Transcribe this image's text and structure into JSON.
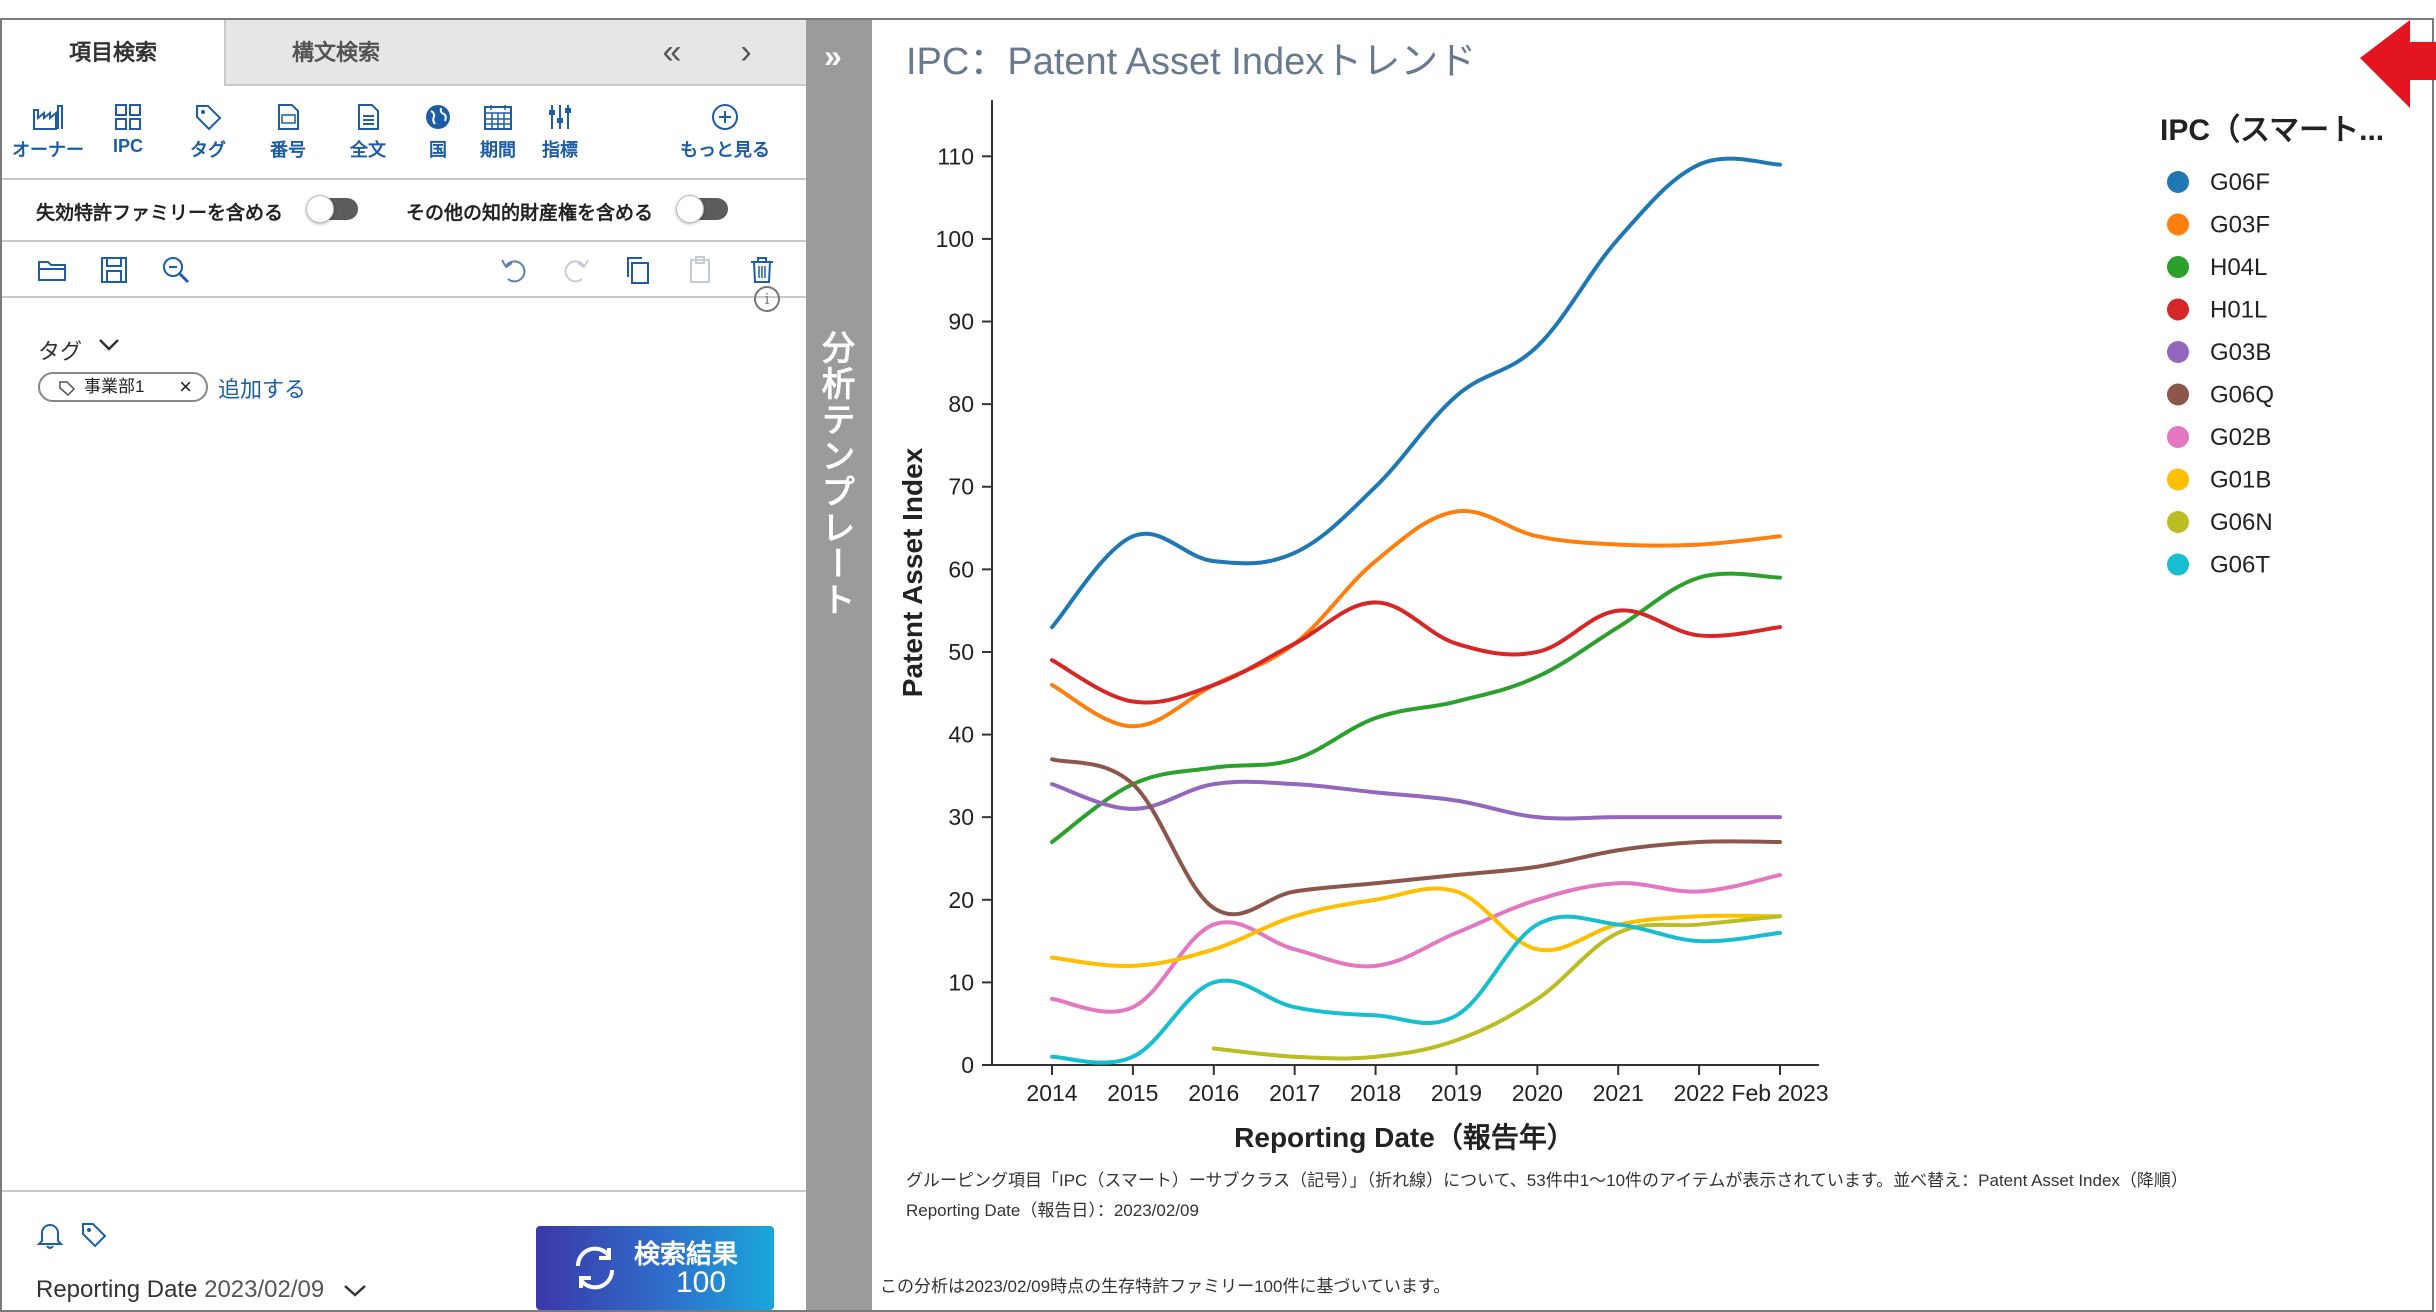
{
  "left": {
    "tabs": [
      "項目検索",
      "構文検索"
    ],
    "tools": [
      "オーナー",
      "IPC",
      "タグ",
      "番号",
      "全文",
      "国",
      "期間",
      "指標",
      "もっと見る"
    ],
    "toggles": {
      "lapsed": "失効特許ファミリーを含める",
      "other_ip": "その他の知的財産権を含める"
    },
    "tag_section": {
      "label": "タグ",
      "chip": "事業部1",
      "add": "追加する"
    },
    "reporting_date": {
      "label": "Reporting Date",
      "value": "2023/02/09"
    },
    "search": {
      "label": "検索結果",
      "count": "100"
    }
  },
  "strip": {
    "label": "分析テンプレート"
  },
  "right": {
    "title": "IPC：Patent Asset Indexトレンド",
    "caption1": "グルーピング項目「IPC（スマート）ーサブクラス（記号）」（折れ線）について、53件中1〜10件のアイテムが表示されています。並べ替え：Patent Asset Index（降順）",
    "caption2": "Reporting Date（報告日）：2023/02/09",
    "footer": "この分析は2023/02/09時点の生存特許ファミリー100件に基づいています。"
  },
  "chart_data": {
    "type": "line",
    "title": "IPC：Patent Asset Indexトレンド",
    "xlabel": "Reporting Date（報告年）",
    "ylabel": "Patent Asset Index",
    "categories": [
      "2014",
      "2015",
      "2016",
      "2017",
      "2018",
      "2019",
      "2020",
      "2021",
      "2022",
      "Feb 2023"
    ],
    "ylim": [
      0,
      115
    ],
    "yticks": [
      0,
      10,
      20,
      30,
      40,
      50,
      60,
      70,
      80,
      90,
      100,
      110
    ],
    "legend_title": "IPC（スマート...",
    "legend_position": "right",
    "series": [
      {
        "name": "G06F",
        "color": "#1f77b4",
        "values": [
          53,
          64,
          61,
          62,
          70,
          81,
          87,
          100,
          109,
          109
        ]
      },
      {
        "name": "G03F",
        "color": "#ff7f0e",
        "values": [
          46,
          41,
          46,
          51,
          61,
          67,
          64,
          63,
          63,
          64
        ]
      },
      {
        "name": "H04L",
        "color": "#2ca02c",
        "values": [
          27,
          34,
          36,
          37,
          42,
          44,
          47,
          53,
          59,
          59
        ]
      },
      {
        "name": "H01L",
        "color": "#d62728",
        "values": [
          49,
          44,
          46,
          51,
          56,
          51,
          50,
          55,
          52,
          53
        ]
      },
      {
        "name": "G03B",
        "color": "#9467bd",
        "values": [
          34,
          31,
          34,
          34,
          33,
          32,
          30,
          30,
          30,
          30
        ]
      },
      {
        "name": "G06Q",
        "color": "#8c564b",
        "values": [
          37,
          34,
          19,
          21,
          22,
          23,
          24,
          26,
          27,
          27
        ]
      },
      {
        "name": "G02B",
        "color": "#e377c2",
        "values": [
          8,
          7,
          17,
          14,
          12,
          16,
          20,
          22,
          21,
          23
        ]
      },
      {
        "name": "G01B",
        "color": "#ffbf00",
        "values": [
          13,
          12,
          14,
          18,
          20,
          21,
          14,
          17,
          18,
          18
        ]
      },
      {
        "name": "G06N",
        "color": "#bcbd22",
        "values": [
          null,
          null,
          2,
          1,
          1,
          3,
          8,
          16,
          17,
          18
        ]
      },
      {
        "name": "G06T",
        "color": "#17becf",
        "values": [
          1,
          1,
          10,
          7,
          6,
          6,
          17,
          17,
          15,
          16
        ]
      }
    ]
  }
}
